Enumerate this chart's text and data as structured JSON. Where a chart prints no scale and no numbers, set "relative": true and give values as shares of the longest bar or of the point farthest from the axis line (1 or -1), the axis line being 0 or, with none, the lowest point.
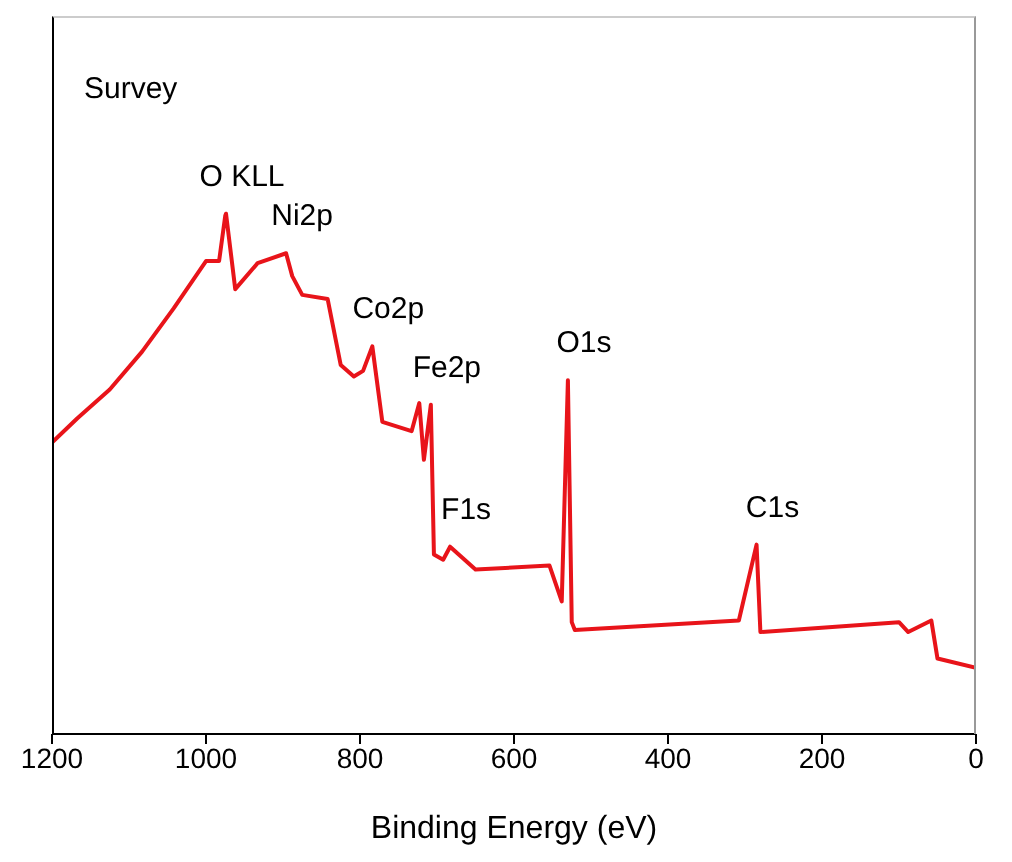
{
  "chart_data": {
    "type": "line",
    "relative": true,
    "xlabel": "Binding Energy (eV)",
    "xlim": [
      1200,
      0
    ],
    "xticks": [
      1200,
      1000,
      800,
      600,
      400,
      200,
      0
    ],
    "tick_labels": "x",
    "grid": false,
    "legend": false,
    "marker": "none",
    "line_style": "solid",
    "annotations": [
      "Survey",
      {
        "text": "O KLL",
        "x": 974,
        "y": 1.0
      },
      {
        "text": "Ni2p",
        "x": 896,
        "y": 0.924
      },
      {
        "text": "Co2p",
        "x": 784,
        "y": 0.745
      },
      {
        "text": "Fe2p",
        "x": 708,
        "y": 0.633
      },
      {
        "text": "F1s",
        "x": 683,
        "y": 0.36
      },
      {
        "text": "O1s",
        "x": 530,
        "y": 0.68
      },
      {
        "text": "C1s",
        "x": 285,
        "y": 0.364
      }
    ],
    "series": [
      {
        "color": "#e8141a",
        "x": [
          1200,
          1167,
          1125,
          1083,
          1042,
          1000,
          983,
          975,
          974,
          962,
          933,
          896,
          888,
          875,
          842,
          825,
          808,
          796,
          784,
          771,
          733,
          723,
          717,
          708,
          704,
          692,
          683,
          650,
          554,
          538,
          530,
          525,
          521,
          308,
          285,
          280,
          100,
          88,
          58,
          50,
          0
        ],
        "values": [
          0.56,
          0.607,
          0.662,
          0.735,
          0.818,
          0.909,
          0.909,
          0.996,
          1.0,
          0.855,
          0.905,
          0.924,
          0.88,
          0.844,
          0.836,
          0.709,
          0.687,
          0.698,
          0.745,
          0.6,
          0.582,
          0.636,
          0.527,
          0.633,
          0.345,
          0.335,
          0.36,
          0.316,
          0.324,
          0.255,
          0.68,
          0.215,
          0.2,
          0.218,
          0.364,
          0.196,
          0.215,
          0.196,
          0.218,
          0.145,
          0.127
        ]
      }
    ]
  }
}
